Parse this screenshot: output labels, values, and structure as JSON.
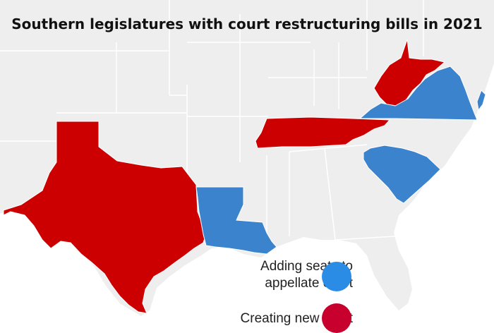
{
  "title": "Southern legislatures with court restructuring bills in 2021",
  "colors": {
    "background": "#eeeeee",
    "border": "#ffffff",
    "adding_seats": "#3b84cd",
    "new_court": "#cc0000",
    "legend_blue": "#2b8ce6",
    "legend_red": "#c8002d"
  },
  "legend": {
    "adding_seats_line1": "Adding seats to",
    "adding_seats_line2": "appellate court",
    "new_court": "Creating new court"
  },
  "states": {
    "adding_seats": [
      "Louisiana",
      "Virginia",
      "South Carolina"
    ],
    "creating_new_court": [
      "Texas",
      "Tennessee",
      "West Virginia"
    ]
  }
}
